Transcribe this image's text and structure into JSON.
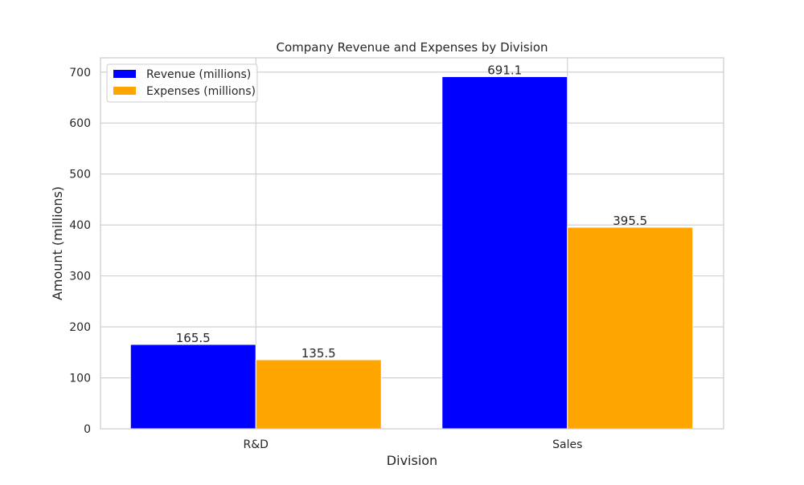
{
  "chart_data": {
    "type": "bar",
    "title": "Company Revenue and Expenses by Division",
    "xlabel": "Division",
    "ylabel": "Amount (millions)",
    "categories": [
      "R&D",
      "Sales"
    ],
    "series": [
      {
        "name": "Revenue (millions)",
        "values": [
          165.5,
          691.1
        ],
        "color": "#0000ff"
      },
      {
        "name": "Expenses (millions)",
        "values": [
          135.5,
          395.5
        ],
        "color": "#ffa500"
      }
    ],
    "ylim": [
      0,
      728
    ],
    "yticks": [
      0,
      100,
      200,
      300,
      400,
      500,
      600,
      700
    ],
    "grid": true,
    "legend_position": "top-left",
    "style": {
      "grid_color": "#cccccc",
      "frame_color": "#cccccc",
      "text_color": "#262626",
      "background": "#ffffff"
    }
  }
}
